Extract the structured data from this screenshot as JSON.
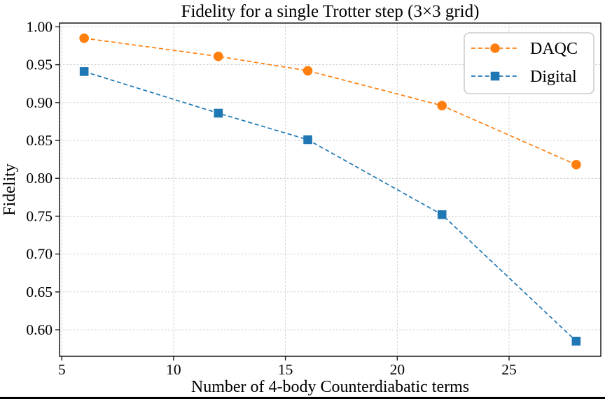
{
  "figure": {
    "bottom_border_color": "#000000",
    "background": "#ffffff"
  },
  "chart_data": {
    "type": "line",
    "title": "Fidelity for a single Trotter step (3×3 grid)",
    "xlabel": "Number of 4-body Counterdiabatic terms",
    "ylabel": "Fidelity",
    "xlim": [
      4.9,
      29.1
    ],
    "ylim": [
      0.565,
      1.005
    ],
    "xticks": [
      5,
      10,
      15,
      20,
      25
    ],
    "xtick_labels": [
      "5",
      "10",
      "15",
      "20",
      "25"
    ],
    "yticks": [
      0.6,
      0.65,
      0.7,
      0.75,
      0.8,
      0.85,
      0.9,
      0.95,
      1.0
    ],
    "ytick_labels": [
      "0.60",
      "0.65",
      "0.70",
      "0.75",
      "0.80",
      "0.85",
      "0.90",
      "0.95",
      "1.00"
    ],
    "grid": true,
    "grid_color": "#c9c9c9",
    "spine_color": "#1a1a1a",
    "legend_position": "upper right",
    "x": [
      6,
      12,
      16,
      22,
      28
    ],
    "series": [
      {
        "name": "DAQC",
        "color": "#ff7f0e",
        "marker": "circle",
        "linestyle": "dashed",
        "values": [
          0.985,
          0.961,
          0.942,
          0.896,
          0.818
        ]
      },
      {
        "name": "Digital",
        "color": "#1f77b4",
        "marker": "square",
        "linestyle": "dashed",
        "values": [
          0.941,
          0.886,
          0.851,
          0.752,
          0.585
        ]
      }
    ]
  }
}
